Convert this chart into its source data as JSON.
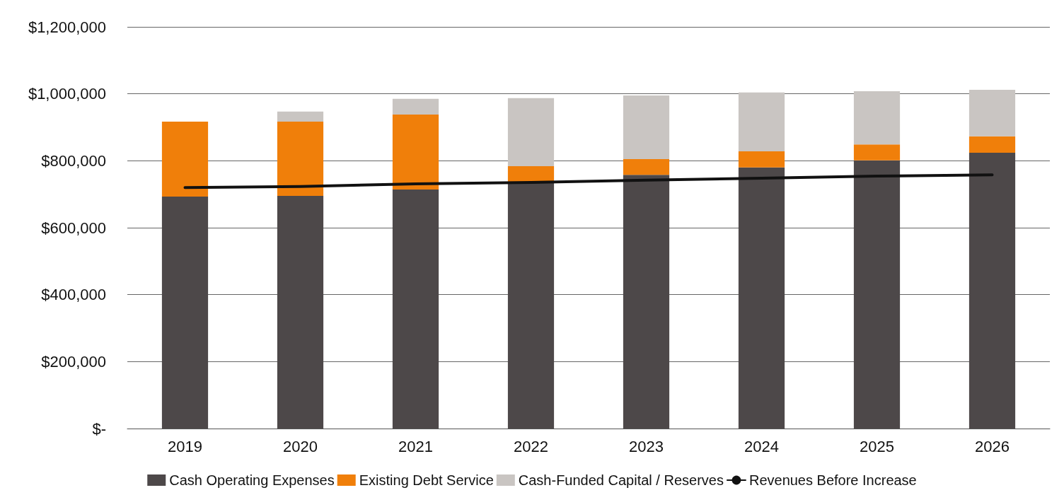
{
  "chart_data": {
    "type": "bar",
    "stacked": true,
    "categories": [
      "2019",
      "2020",
      "2021",
      "2022",
      "2023",
      "2024",
      "2025",
      "2026"
    ],
    "series": [
      {
        "name": "Cash Operating Expenses",
        "color": "#4d4849",
        "values": [
          693000,
          695000,
          714000,
          737000,
          758000,
          780000,
          801000,
          824000
        ]
      },
      {
        "name": "Existing Debt Service",
        "color": "#f07f0a",
        "values": [
          224000,
          222000,
          224000,
          47000,
          47000,
          48000,
          48000,
          49000
        ]
      },
      {
        "name": "Cash-Funded Capital / Reserves",
        "color": "#c9c5c2",
        "values": [
          0,
          30000,
          47000,
          203000,
          190000,
          176000,
          159000,
          139000
        ]
      },
      {
        "name": "Revenues Before Increase",
        "type": "line",
        "color": "#111111",
        "marker": "none",
        "values": [
          720000,
          723000,
          731000,
          735000,
          742000,
          748000,
          754000,
          758000
        ]
      }
    ],
    "ylim": [
      0,
      1200000
    ],
    "yticks": [
      {
        "value": 0,
        "label": "$-"
      },
      {
        "value": 200000,
        "label": "$200,000"
      },
      {
        "value": 400000,
        "label": "$400,000"
      },
      {
        "value": 600000,
        "label": "$600,000"
      },
      {
        "value": 800000,
        "label": "$800,000"
      },
      {
        "value": 1000000,
        "label": "$1,000,000"
      },
      {
        "value": 1200000,
        "label": "$1,200,000"
      }
    ],
    "grid": "y",
    "legend": "bottom"
  }
}
